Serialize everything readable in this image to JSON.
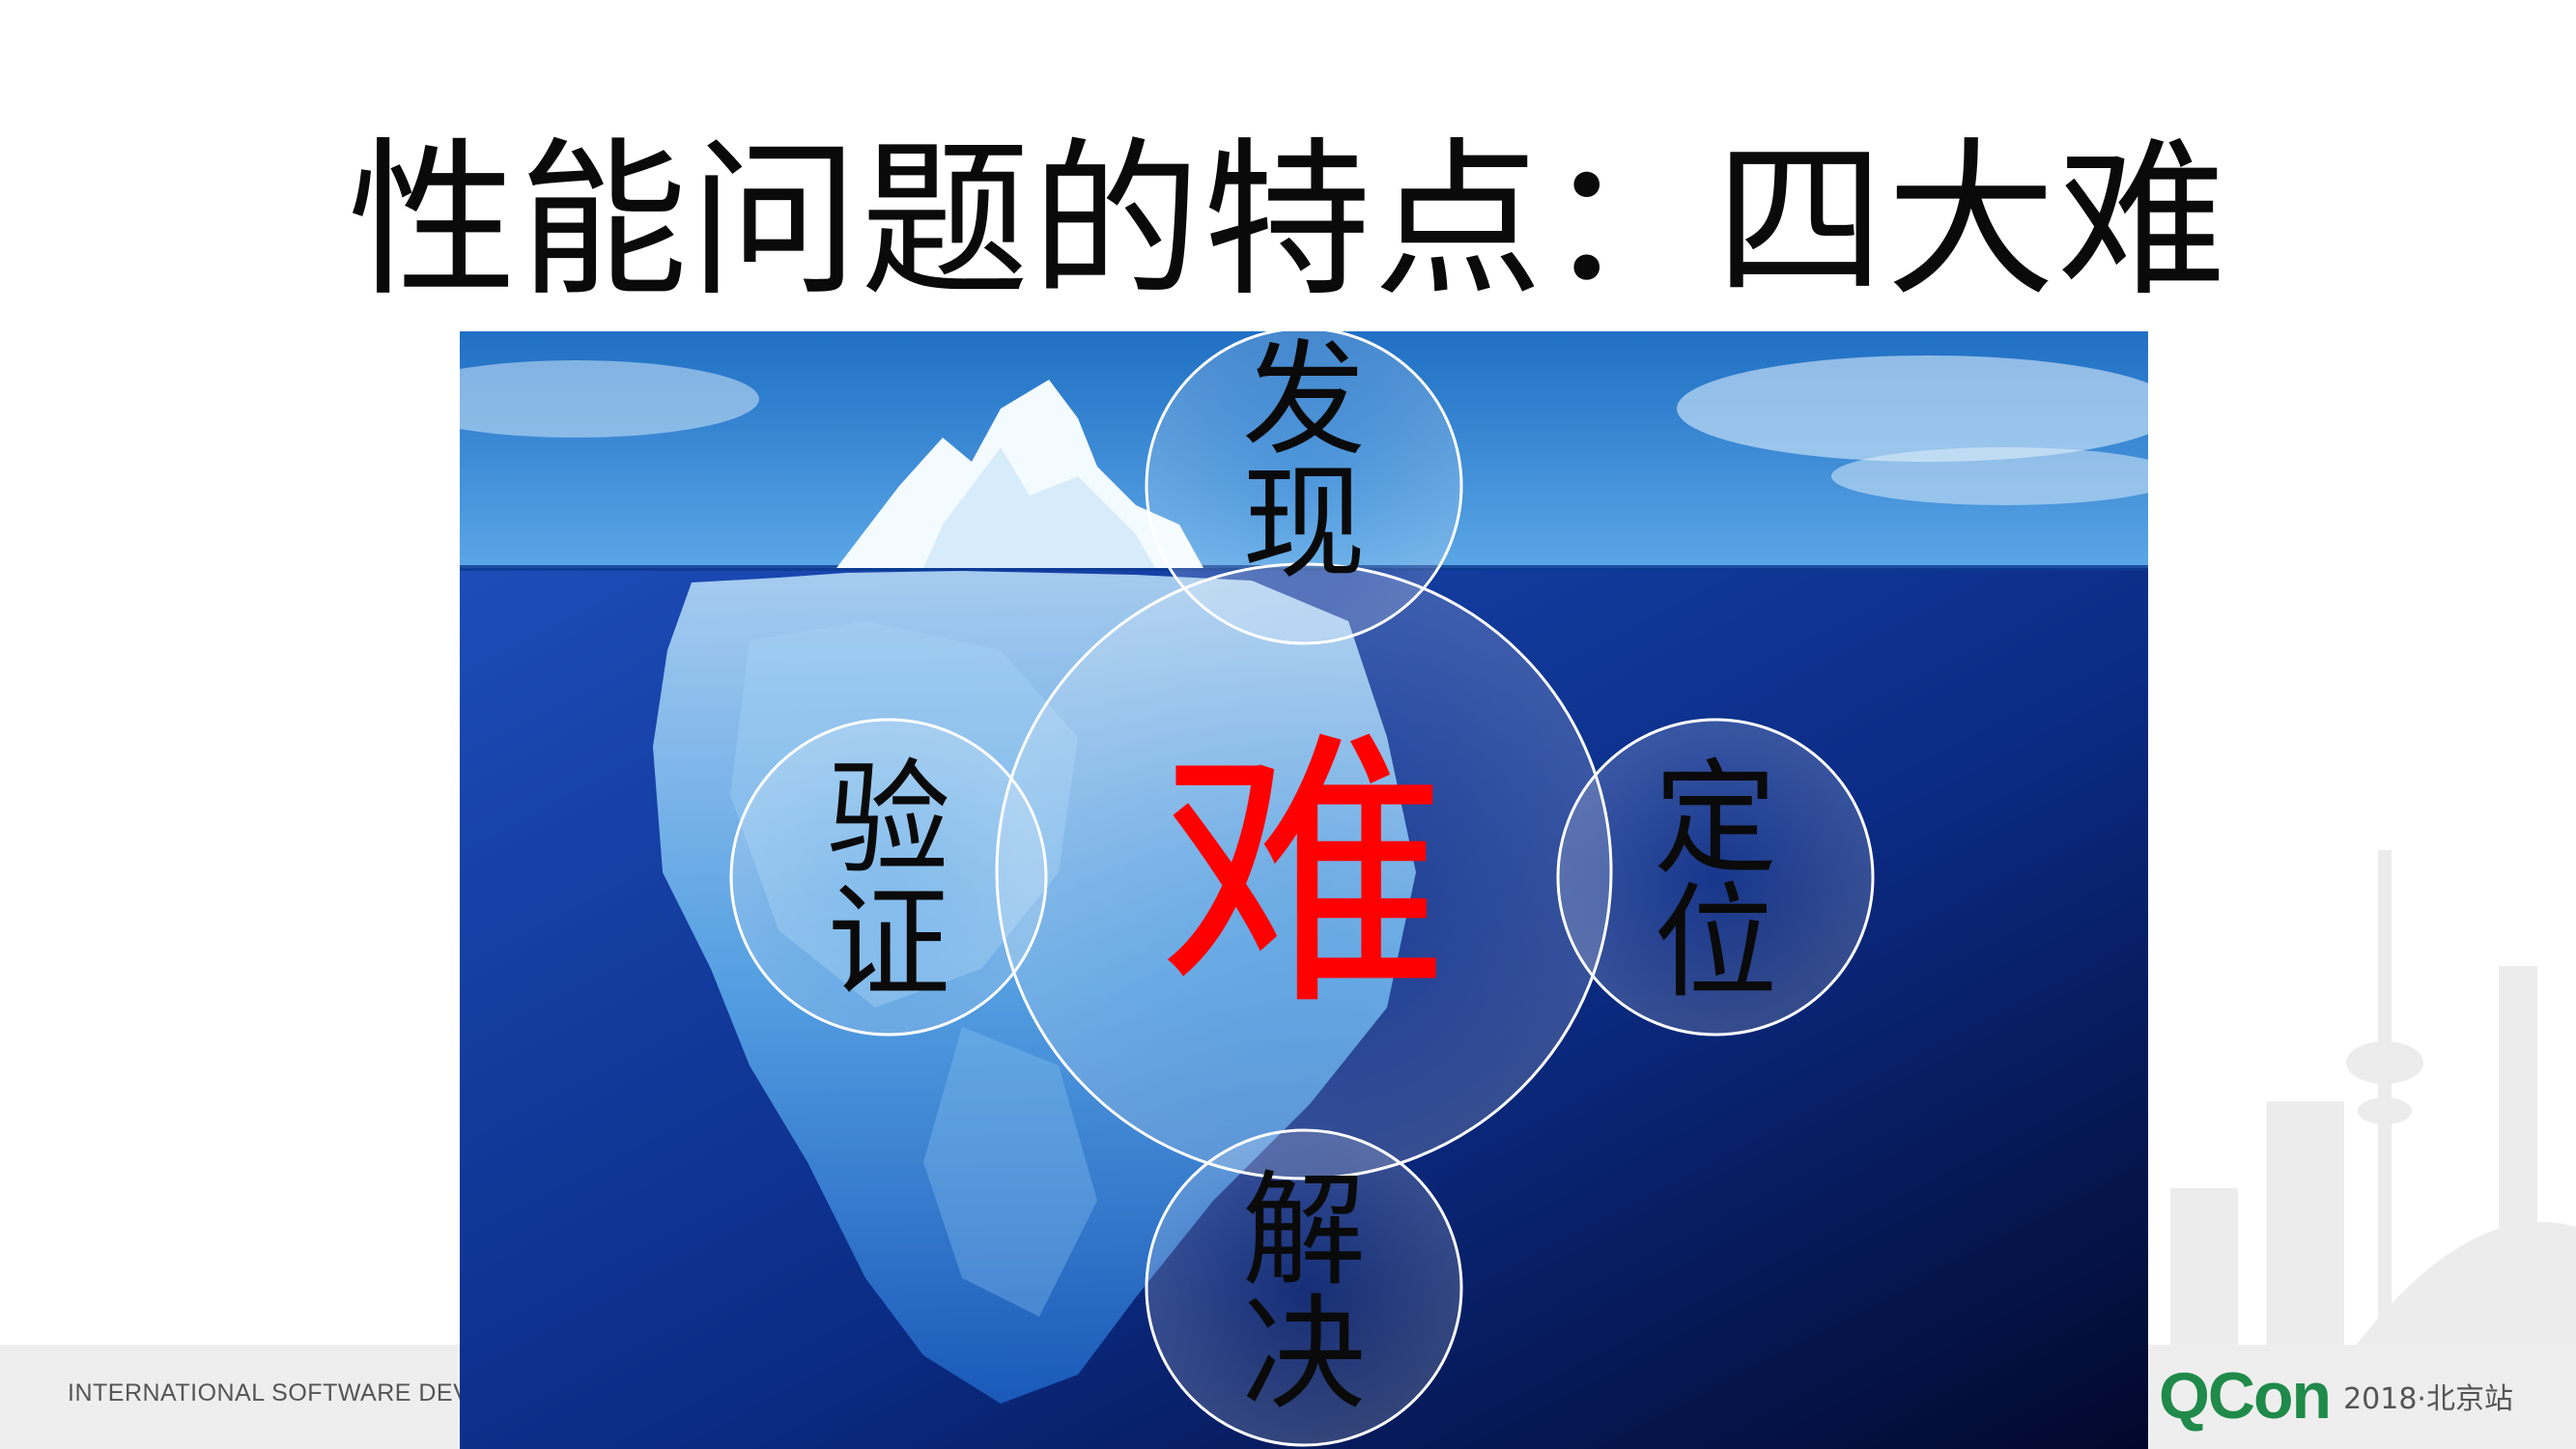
{
  "title": "性能问题的特点：四大难",
  "center": {
    "char": "难",
    "color": "#ff0000"
  },
  "bubbles": {
    "top": {
      "line1": "发",
      "line2": "现"
    },
    "left": {
      "line1": "验",
      "line2": "证"
    },
    "right": {
      "line1": "定",
      "line2": "位"
    },
    "bottom": {
      "line1": "解",
      "line2": "决"
    }
  },
  "footer": {
    "text": "INTERNATIONAL SOFTWARE DEVELO",
    "brand_logo": "QCon",
    "brand_sub": "2018·北京站",
    "brand_color": "#1f8a49"
  }
}
